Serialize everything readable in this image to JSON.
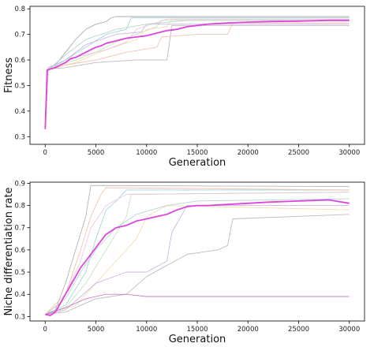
{
  "chart_data": [
    {
      "type": "line",
      "xlabel": "Generation",
      "ylabel": "Fitness",
      "xlim": [
        -1500,
        31500
      ],
      "ylim": [
        0.27,
        0.81
      ],
      "xticks": [
        0,
        5000,
        10000,
        15000,
        20000,
        25000,
        30000
      ],
      "xtick_labels": [
        "0",
        "5000",
        "10000",
        "15000",
        "20000",
        "25000",
        "30000"
      ],
      "yticks": [
        0.3,
        0.4,
        0.5,
        0.6,
        0.7,
        0.8
      ],
      "ytick_labels": [
        "0.3",
        "0.4",
        "0.5",
        "0.6",
        "0.7",
        "0.8"
      ],
      "grid": false,
      "colors": {
        "mean": "#dd44dd"
      },
      "series": [
        {
          "role": "mean",
          "color": "#dd44dd",
          "width": 1.8,
          "x": [
            0,
            200,
            500,
            1000,
            1500,
            2000,
            2500,
            3000,
            3500,
            4000,
            4500,
            5000,
            5500,
            6000,
            7000,
            8000,
            9000,
            10000,
            11000,
            12000,
            13000,
            14000,
            15000,
            16000,
            18000,
            20000,
            22000,
            25000,
            28000,
            30000
          ],
          "y": [
            0.33,
            0.56,
            0.565,
            0.57,
            0.58,
            0.59,
            0.605,
            0.61,
            0.62,
            0.63,
            0.64,
            0.65,
            0.655,
            0.665,
            0.675,
            0.685,
            0.69,
            0.695,
            0.705,
            0.715,
            0.72,
            0.73,
            0.735,
            0.74,
            0.745,
            0.748,
            0.75,
            0.752,
            0.755,
            0.755
          ]
        },
        {
          "role": "run",
          "color": "#a0a0a0",
          "x": [
            0,
            300,
            1000,
            2000,
            3000,
            4000,
            5000,
            6000,
            6500,
            7000,
            30000
          ],
          "y": [
            0.33,
            0.57,
            0.58,
            0.63,
            0.68,
            0.72,
            0.74,
            0.75,
            0.765,
            0.77,
            0.77
          ]
        },
        {
          "role": "run",
          "color": "#8fd0d8",
          "x": [
            0,
            300,
            2000,
            4000,
            6000,
            8000,
            8500,
            30000
          ],
          "y": [
            0.33,
            0.56,
            0.6,
            0.65,
            0.7,
            0.72,
            0.765,
            0.765
          ]
        },
        {
          "role": "run",
          "color": "#b8e0b0",
          "x": [
            0,
            300,
            3000,
            5000,
            7000,
            9000,
            11000,
            11500,
            30000
          ],
          "y": [
            0.33,
            0.565,
            0.6,
            0.63,
            0.67,
            0.7,
            0.73,
            0.755,
            0.755
          ]
        },
        {
          "role": "run",
          "color": "#f0b8a0",
          "x": [
            0,
            300,
            2000,
            5000,
            8000,
            11000,
            11500,
            15000,
            18000,
            18500,
            30000
          ],
          "y": [
            0.33,
            0.56,
            0.58,
            0.6,
            0.63,
            0.65,
            0.69,
            0.7,
            0.7,
            0.745,
            0.745
          ]
        },
        {
          "role": "run",
          "color": "#f0d8a0",
          "x": [
            0,
            300,
            3000,
            6000,
            9000,
            10000,
            12000,
            12500,
            30000
          ],
          "y": [
            0.33,
            0.565,
            0.59,
            0.64,
            0.68,
            0.72,
            0.73,
            0.76,
            0.76
          ]
        },
        {
          "role": "run",
          "color": "#c8a8e0",
          "x": [
            0,
            300,
            2000,
            4000,
            7000,
            9500,
            10000,
            30000
          ],
          "y": [
            0.33,
            0.57,
            0.6,
            0.66,
            0.7,
            0.71,
            0.74,
            0.74
          ]
        },
        {
          "role": "run",
          "color": "#b0b0b0",
          "x": [
            0,
            300,
            2000,
            5000,
            9000,
            12000,
            12500,
            30000
          ],
          "y": [
            0.33,
            0.565,
            0.57,
            0.59,
            0.6,
            0.6,
            0.735,
            0.735
          ]
        },
        {
          "role": "run",
          "color": "#a8d0c0",
          "x": [
            0,
            300,
            2000,
            4000,
            7000,
            10000,
            14000,
            30000
          ],
          "y": [
            0.33,
            0.56,
            0.62,
            0.68,
            0.72,
            0.74,
            0.755,
            0.755
          ]
        },
        {
          "role": "run",
          "color": "#e8c0d8",
          "x": [
            0,
            300,
            3000,
            6000,
            8000,
            9000,
            12000,
            30000
          ],
          "y": [
            0.33,
            0.56,
            0.61,
            0.64,
            0.67,
            0.72,
            0.76,
            0.76
          ]
        }
      ]
    },
    {
      "type": "line",
      "xlabel": "Generation",
      "ylabel": "Niche differentiation rate",
      "xlim": [
        -1500,
        31500
      ],
      "ylim": [
        0.28,
        0.905
      ],
      "xticks": [
        0,
        5000,
        10000,
        15000,
        20000,
        25000,
        30000
      ],
      "xtick_labels": [
        "0",
        "5000",
        "10000",
        "15000",
        "20000",
        "25000",
        "30000"
      ],
      "yticks": [
        0.3,
        0.4,
        0.5,
        0.6,
        0.7,
        0.8,
        0.9
      ],
      "ytick_labels": [
        "0.3",
        "0.4",
        "0.5",
        "0.6",
        "0.7",
        "0.8",
        "0.9"
      ],
      "grid": false,
      "colors": {
        "mean": "#dd44dd"
      },
      "series": [
        {
          "role": "mean",
          "color": "#dd44dd",
          "width": 1.8,
          "x": [
            0,
            500,
            1000,
            1500,
            2000,
            2500,
            3000,
            3500,
            4000,
            4500,
            5000,
            5500,
            6000,
            7000,
            8000,
            9000,
            10000,
            11000,
            12000,
            13000,
            14000,
            15000,
            16000,
            18000,
            20000,
            22000,
            25000,
            28000,
            30000
          ],
          "y": [
            0.31,
            0.305,
            0.32,
            0.36,
            0.4,
            0.44,
            0.48,
            0.52,
            0.55,
            0.58,
            0.61,
            0.64,
            0.67,
            0.7,
            0.71,
            0.73,
            0.74,
            0.75,
            0.76,
            0.78,
            0.795,
            0.8,
            0.8,
            0.805,
            0.81,
            0.815,
            0.82,
            0.825,
            0.81
          ]
        },
        {
          "role": "run",
          "color": "#a8a8a8",
          "x": [
            0,
            1000,
            2000,
            3000,
            4000,
            4500,
            30000
          ],
          "y": [
            0.31,
            0.33,
            0.45,
            0.6,
            0.75,
            0.89,
            0.885
          ]
        },
        {
          "role": "run",
          "color": "#8fd0d8",
          "x": [
            0,
            2000,
            4000,
            5000,
            6000,
            7000,
            8000,
            30000
          ],
          "y": [
            0.31,
            0.35,
            0.5,
            0.65,
            0.78,
            0.82,
            0.87,
            0.87
          ]
        },
        {
          "role": "run",
          "color": "#b8e0b0",
          "x": [
            0,
            2000,
            4000,
            6000,
            8000,
            8500,
            30000
          ],
          "y": [
            0.31,
            0.34,
            0.45,
            0.6,
            0.75,
            0.85,
            0.86
          ]
        },
        {
          "role": "run",
          "color": "#f0b8a0",
          "x": [
            0,
            2000,
            3500,
            4500,
            5500,
            6000,
            30000
          ],
          "y": [
            0.31,
            0.4,
            0.6,
            0.75,
            0.85,
            0.88,
            0.87
          ]
        },
        {
          "role": "run",
          "color": "#f0d8a0",
          "x": [
            0,
            3000,
            5000,
            7000,
            9000,
            10000,
            12000,
            30000
          ],
          "y": [
            0.31,
            0.35,
            0.45,
            0.55,
            0.65,
            0.75,
            0.8,
            0.78
          ]
        },
        {
          "role": "run",
          "color": "#c8a8e0",
          "x": [
            0,
            2000,
            5000,
            8000,
            10000,
            12000,
            12500,
            14000,
            30000
          ],
          "y": [
            0.31,
            0.33,
            0.45,
            0.5,
            0.5,
            0.55,
            0.68,
            0.8,
            0.8
          ]
        },
        {
          "role": "run",
          "color": "#b0b0b0",
          "x": [
            0,
            2000,
            5000,
            8000,
            10000,
            14000,
            17000,
            18000,
            18500,
            30000
          ],
          "y": [
            0.31,
            0.32,
            0.38,
            0.4,
            0.48,
            0.58,
            0.6,
            0.62,
            0.74,
            0.76
          ]
        },
        {
          "role": "run",
          "color": "#c06cc0",
          "x": [
            0,
            2000,
            4000,
            6000,
            8000,
            10000,
            30000
          ],
          "y": [
            0.31,
            0.34,
            0.38,
            0.4,
            0.4,
            0.39,
            0.39
          ]
        },
        {
          "role": "run",
          "color": "#a8d0c0",
          "x": [
            0,
            2000,
            3500,
            5000,
            7000,
            9000,
            12000,
            15000,
            30000
          ],
          "y": [
            0.31,
            0.38,
            0.5,
            0.6,
            0.7,
            0.76,
            0.8,
            0.82,
            0.83
          ]
        },
        {
          "role": "run",
          "color": "#e8c0d8",
          "x": [
            0,
            1500,
            2500,
            3500,
            4500,
            6000,
            8000,
            30000
          ],
          "y": [
            0.31,
            0.36,
            0.45,
            0.55,
            0.7,
            0.8,
            0.85,
            0.86
          ]
        }
      ]
    }
  ]
}
